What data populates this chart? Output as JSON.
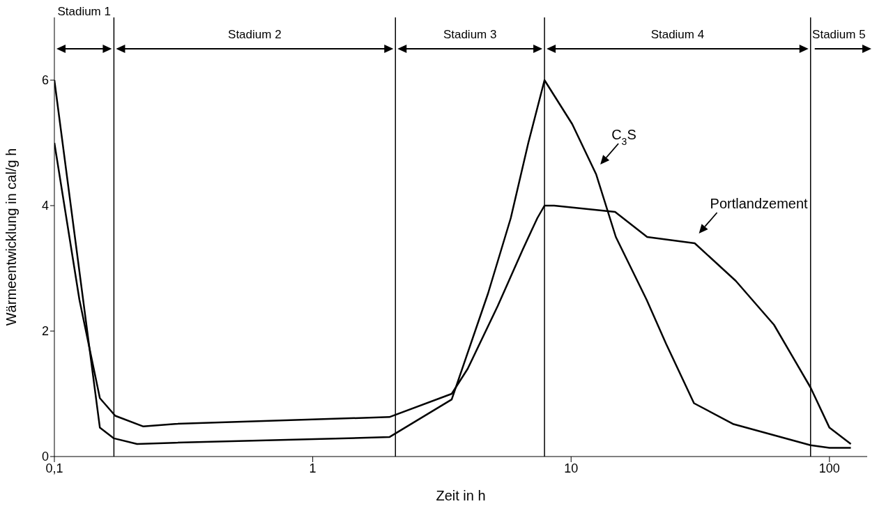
{
  "chart_data": {
    "type": "line",
    "xlabel": "Zeit in h",
    "ylabel": "Wärmeentwicklung in cal/g h",
    "log": "x",
    "xlim": [
      0.1,
      140
    ],
    "xticks": [
      {
        "value": 0.1,
        "label": "0,1"
      },
      1,
      10,
      100
    ],
    "ylim": [
      0,
      7
    ],
    "yticks": [
      0,
      2,
      4,
      6
    ],
    "marker": "none",
    "line_style": "solid",
    "series": [
      {
        "color": "#000000",
        "x": [
          0.1,
          0.15,
          0.17,
          0.209,
          0.293,
          1.98,
          3.45,
          4.77,
          5.84,
          6.83,
          7.89,
          10.1,
          12.5,
          14.9,
          19.6,
          23.3,
          29.9,
          42.3,
          84.5,
          100,
          121
        ],
        "values": [
          6,
          0.46,
          0.29,
          0.2,
          0.22,
          0.31,
          0.91,
          2.6,
          3.8,
          5,
          6,
          5.3,
          4.5,
          3.5,
          2.5,
          1.8,
          0.85,
          0.52,
          0.18,
          0.14,
          0.14
        ]
      },
      {
        "color": "#000000",
        "x": [
          0.1,
          0.125,
          0.15,
          0.172,
          0.221,
          0.293,
          1.98,
          3.45,
          3.98,
          5.2,
          6.5,
          7.4,
          7.89,
          8.6,
          14.8,
          19.7,
          30.1,
          43.4,
          61,
          84.5,
          100,
          121
        ],
        "values": [
          5,
          2.5,
          0.93,
          0.65,
          0.48,
          0.52,
          0.63,
          1,
          1.4,
          2.4,
          3.3,
          3.8,
          4,
          4,
          3.9,
          3.5,
          3.4,
          2.8,
          2.1,
          1.1,
          0.46,
          0.2
        ]
      }
    ],
    "ref_lines": [
      {
        "axis": "x",
        "value": 0.17
      },
      {
        "axis": "x",
        "value": 2.09
      },
      {
        "axis": "x",
        "value": 7.89
      },
      {
        "axis": "x",
        "value": 84.5
      }
    ],
    "annotations": [
      "Stadium 1",
      "Stadium 2",
      "Stadium 3",
      "Stadium 4",
      "Stadium 5",
      {
        "text": "C$_{3}$S",
        "x": 12.5,
        "y": 4.5
      },
      {
        "text": "Portlandzement",
        "x": 30.1,
        "y": 3.4
      }
    ]
  }
}
